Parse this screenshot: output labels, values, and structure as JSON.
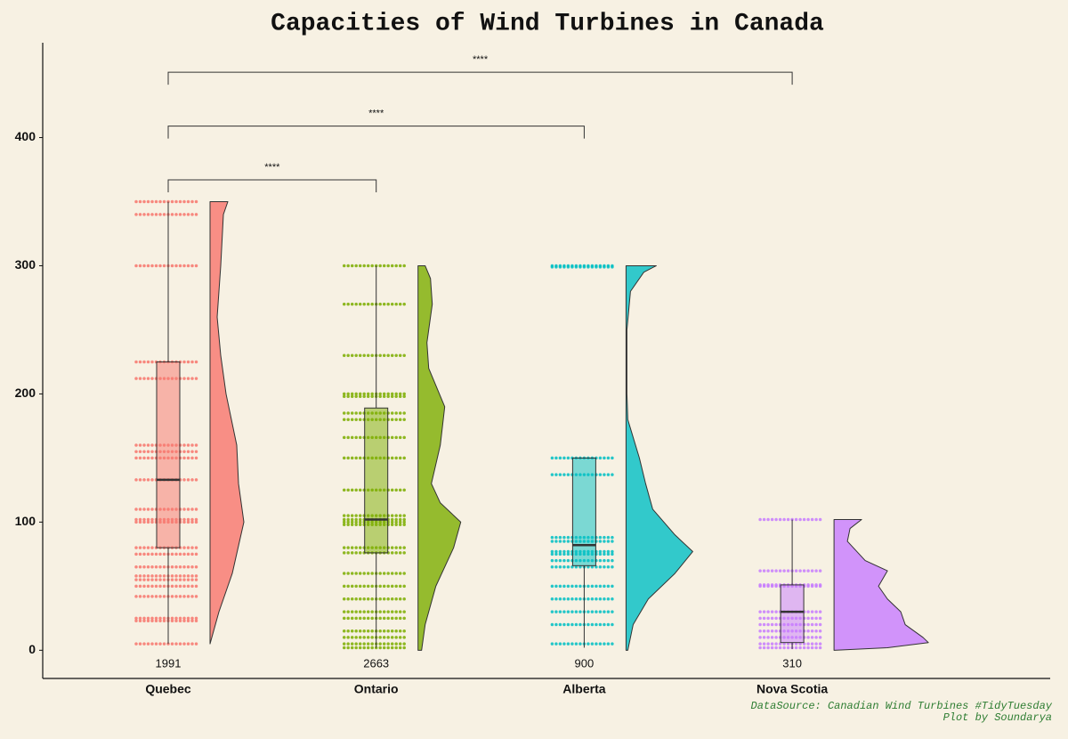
{
  "chart_data": {
    "type": "raincloud",
    "title": "Capacities of Wind Turbines in Canada",
    "caption": [
      "DataSource: Canadian Wind Turbines #TidyTuesday",
      "Plot by Soundarya"
    ],
    "ylim": [
      -22,
      474
    ],
    "yticks": [
      0,
      100,
      200,
      300,
      400
    ],
    "series": [
      {
        "name": "Quebec",
        "color": "#f8766d",
        "n": 1991,
        "min": 5,
        "q1": 80,
        "median": 133,
        "q3": 225,
        "max": 350,
        "points": [
          350,
          340,
          300,
          225,
          212,
          160,
          155,
          150,
          133,
          110,
          102,
          100,
          80,
          75,
          65,
          58,
          55,
          50,
          42,
          25,
          23,
          5
        ],
        "violin_y": [
          350,
          340,
          300,
          260,
          230,
          200,
          160,
          130,
          100,
          60,
          30,
          5
        ],
        "violin_density": [
          0.2,
          0.15,
          0.12,
          0.08,
          0.12,
          0.18,
          0.3,
          0.32,
          0.38,
          0.25,
          0.1,
          0
        ]
      },
      {
        "name": "Ontario",
        "color": "#7cae00",
        "n": 2663,
        "min": 2,
        "q1": 76,
        "median": 102,
        "q3": 189,
        "max": 300,
        "points": [
          300,
          270,
          230,
          200,
          198,
          185,
          180,
          166,
          150,
          125,
          105,
          102,
          100,
          98,
          80,
          76,
          60,
          50,
          40,
          30,
          25,
          15,
          10,
          5,
          2
        ],
        "violin_y": [
          300,
          290,
          270,
          240,
          220,
          190,
          160,
          130,
          115,
          100,
          80,
          50,
          20,
          0
        ],
        "violin_density": [
          0.08,
          0.14,
          0.16,
          0.1,
          0.12,
          0.3,
          0.25,
          0.15,
          0.25,
          0.48,
          0.4,
          0.2,
          0.08,
          0.04
        ]
      },
      {
        "name": "Alberta",
        "color": "#00bfc4",
        "n": 900,
        "min": 2,
        "q1": 66,
        "median": 82,
        "q3": 150,
        "max": 150,
        "points": [
          300,
          299,
          150,
          137,
          88,
          85,
          77,
          75,
          70,
          65,
          50,
          40,
          30,
          20,
          5
        ],
        "violin_y": [
          300,
          295,
          280,
          250,
          200,
          180,
          150,
          130,
          110,
          90,
          77,
          60,
          40,
          20,
          0
        ],
        "violin_density": [
          0.34,
          0.2,
          0.05,
          0.01,
          0.01,
          0.02,
          0.15,
          0.22,
          0.3,
          0.55,
          0.75,
          0.55,
          0.25,
          0.08,
          0.02
        ]
      },
      {
        "name": "Nova Scotia",
        "color": "#c77cff",
        "n": 310,
        "min": 1,
        "q1": 6,
        "median": 30,
        "q3": 51,
        "max": 102,
        "points": [
          102,
          62,
          51,
          50,
          30,
          25,
          20,
          15,
          10,
          5,
          2
        ],
        "violin_y": [
          102,
          95,
          85,
          70,
          62,
          50,
          40,
          30,
          20,
          10,
          6,
          2,
          0
        ],
        "violin_density": [
          0.31,
          0.18,
          0.15,
          0.35,
          0.6,
          0.5,
          0.6,
          0.75,
          0.8,
          1.0,
          1.06,
          0.6,
          0
        ]
      }
    ],
    "brackets": [
      {
        "from": "Quebec",
        "to": "Ontario",
        "y": 367,
        "label": "****"
      },
      {
        "from": "Quebec",
        "to": "Alberta",
        "y": 409,
        "label": "****"
      },
      {
        "from": "Quebec",
        "to": "Nova Scotia",
        "y": 451,
        "label": "****"
      }
    ]
  }
}
